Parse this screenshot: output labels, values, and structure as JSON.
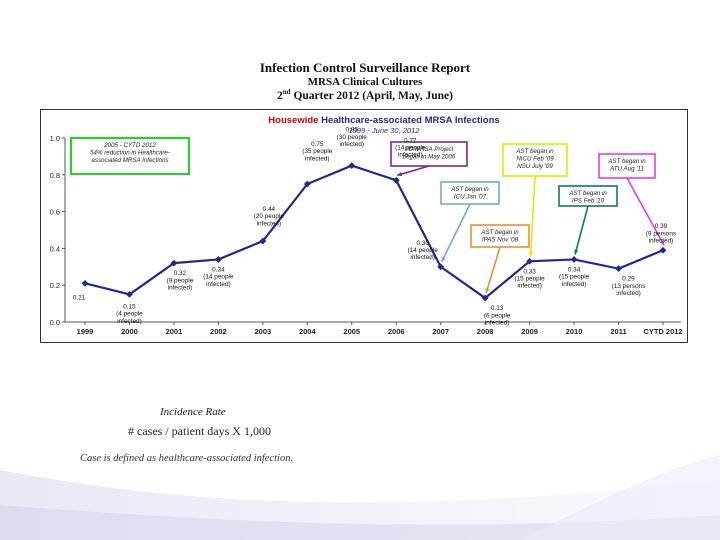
{
  "report": {
    "title": "Infection Control Surveillance Report",
    "subtitle": "MRSA Clinical Cultures",
    "quarter_prefix": "2",
    "quarter_sup": "nd",
    "quarter_rest": " Quarter 2012 (April, May, June)"
  },
  "chart_data": {
    "type": "line",
    "title_red": "Housewide",
    "title_rest": " Healthcare-associated MRSA Infections",
    "subtitle": "1999 - June 30, 2012",
    "xlabel": "",
    "ylabel": "",
    "ylim": [
      0,
      1.0
    ],
    "yticks": [
      "0.0",
      "0.2",
      "0.4",
      "0.6",
      "0.8",
      "1.0"
    ],
    "categories": [
      "1999",
      "2000",
      "2001",
      "2002",
      "2003",
      "2004",
      "2005",
      "2006",
      "2007",
      "2008",
      "2009",
      "2010",
      "2011",
      "CYTD 2012"
    ],
    "values": [
      0.21,
      0.15,
      0.32,
      0.34,
      0.44,
      0.75,
      0.85,
      0.77,
      0.3,
      0.13,
      0.33,
      0.34,
      0.29,
      0.39
    ],
    "series_color": "#1f2a8c",
    "data_labels": [
      {
        "text": "0.21",
        "show": true
      },
      {
        "text": "0.15\n(4 people\ninfected)",
        "show": true
      },
      {
        "text": "0.32\n(9 people\ninfected)",
        "show": true
      },
      {
        "text": "0.34\n(14 people\ninfected)",
        "show": true
      },
      {
        "text": "0.44\n(20 people\ninfected)",
        "show": true
      },
      {
        "text": "0.75\n(35 people\ninfected)",
        "show": true
      },
      {
        "text": "0.85\n(30 people\ninfected)",
        "show": true
      },
      {
        "text": "0.77\n(14 people\ninfected)",
        "show": true
      },
      {
        "text": "0.30\n(14 people\ninfected)",
        "show": true
      },
      {
        "text": "0.13\n(6 people\ninfected)",
        "show": true
      },
      {
        "text": "0.33\n(15 people\ninfected)",
        "show": true
      },
      {
        "text": "0.34\n(15 people\ninfected)",
        "show": true
      },
      {
        "text": "0.29\n(13 persons\ninfected)",
        "show": true
      },
      {
        "text": "0.39\n(9 persons\ninfected)",
        "show": true
      }
    ],
    "annotations": [
      {
        "name": "cytd-summary",
        "text": "2005 - CYTD 2012\n54% reduction in Healthcare-\nassociated MRSA Infections",
        "color": "#2ecc2e",
        "points_to": null
      },
      {
        "name": "pd-mrsa-project",
        "text": "PD/MRSA Project\nbegan in May 2006",
        "color": "#7a2a8a",
        "points_to": "2006"
      },
      {
        "name": "ast-icu",
        "text": "AST began in\nICU Jan '07",
        "color": "#6fa8dc",
        "points_to": "2007"
      },
      {
        "name": "ast-ipas",
        "text": "AST began in\nIPAS Nov '08",
        "color": "#e69138",
        "points_to": "2008"
      },
      {
        "name": "ast-nicu",
        "text": "AST began in\nNICU Feb '09\nNSU July '09",
        "color": "#e6e600",
        "points_to": "2009"
      },
      {
        "name": "ast-ips",
        "text": "AST began in\nIPS Feb '10",
        "color": "#0b7a6e",
        "points_to": "2010"
      },
      {
        "name": "ast-atu",
        "text": "AST began in\nATU Aug '11",
        "color": "#e040e0",
        "points_to": "CYTD 2012"
      }
    ]
  },
  "footer": {
    "rate_label": "Incidence Rate",
    "formula": "# cases / patient days X 1,000",
    "definition": "Case is defined as healthcare-associated infection."
  }
}
